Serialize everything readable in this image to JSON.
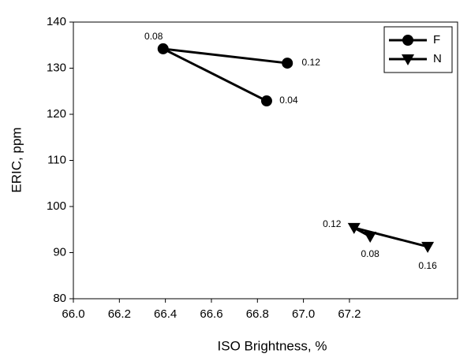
{
  "chart_data": {
    "type": "line",
    "x_label": "ISO Brightness, %",
    "y_label": "ERIC, ppm",
    "xlim": [
      66.0,
      67.67
    ],
    "ylim": [
      80,
      140
    ],
    "xticks": [
      {
        "value": 66.0,
        "label": "66.0"
      },
      {
        "value": 66.2,
        "label": "66.2"
      },
      {
        "value": 66.4,
        "label": "66.4"
      },
      {
        "value": 66.6,
        "label": "66.6"
      },
      {
        "value": 66.8,
        "label": "66.8"
      },
      {
        "value": 67.0,
        "label": "67.0"
      },
      {
        "value": 67.2,
        "label": "67.2"
      }
    ],
    "yticks": [
      80,
      90,
      100,
      110,
      120,
      130,
      140
    ],
    "grid": false,
    "legend": "upper right",
    "series": [
      {
        "name": "F",
        "color": "#000000",
        "marker": "circle",
        "x": [
          66.84,
          66.39,
          66.93
        ],
        "values": [
          122.9,
          134.2,
          131.1
        ],
        "point_labels": [
          "0.04",
          "0.08",
          "0.12"
        ]
      },
      {
        "name": "N",
        "color": "#000000",
        "marker": "triangle-down",
        "x": [
          67.29,
          67.22,
          67.54
        ],
        "values": [
          93.5,
          95.4,
          91.3
        ],
        "point_labels": [
          "0.08",
          "0.12",
          "0.16"
        ]
      }
    ]
  }
}
